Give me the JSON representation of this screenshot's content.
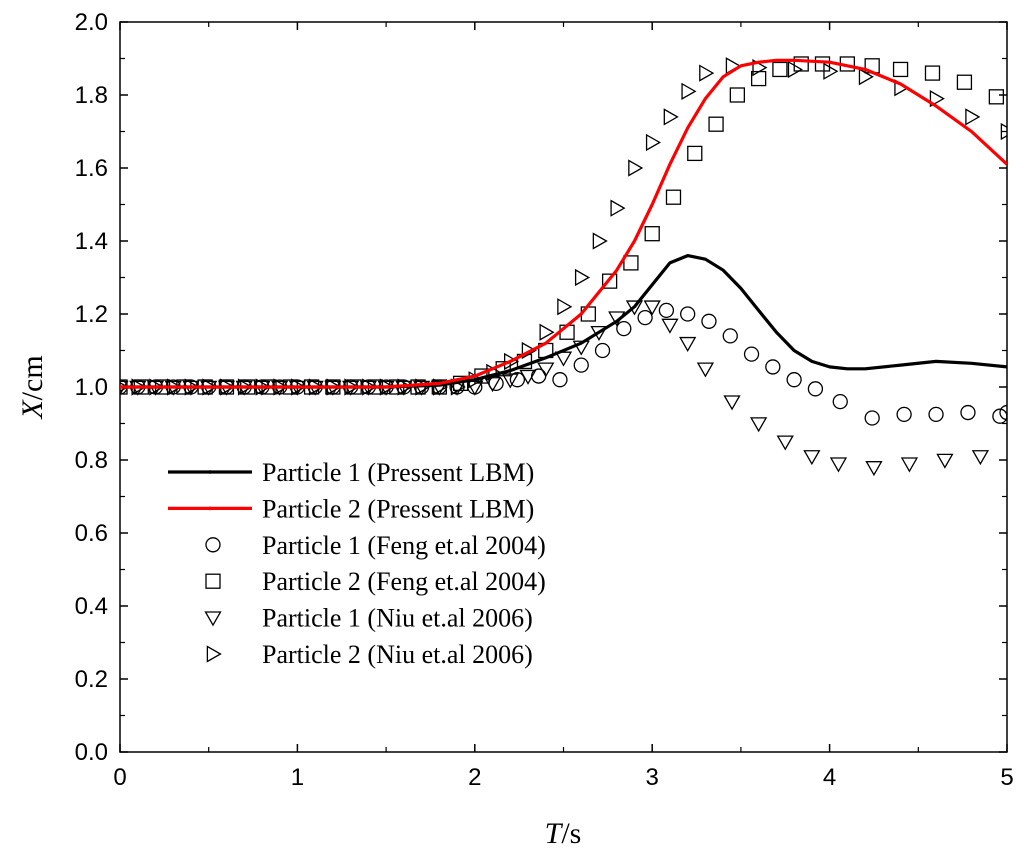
{
  "chart_data": {
    "type": "line",
    "title": "",
    "xlabel": {
      "symbol": "T",
      "unit": "/s"
    },
    "ylabel": {
      "symbol": "X",
      "unit": "/cm"
    },
    "xlim": [
      0,
      5
    ],
    "ylim": [
      0,
      2.0
    ],
    "x_ticks": [
      0,
      1,
      2,
      3,
      4,
      5
    ],
    "x_tick_labels": [
      "0",
      "1",
      "2",
      "3",
      "4",
      "5"
    ],
    "y_ticks": [
      0,
      0.2,
      0.4,
      0.6,
      0.8,
      1.0,
      1.2,
      1.4,
      1.6,
      1.8,
      2.0
    ],
    "y_tick_labels": [
      "0.0",
      "0.2",
      "0.4",
      "0.6",
      "0.8",
      "1.0",
      "1.2",
      "1.4",
      "1.6",
      "1.8",
      "2.0"
    ],
    "grid": false,
    "legend_position": "bottom-left",
    "series": [
      {
        "name": "Particle 1 (Pressent LBM)",
        "kind": "line",
        "color": "#000000",
        "x": [
          0,
          0.5,
          1.0,
          1.5,
          1.8,
          2.0,
          2.2,
          2.4,
          2.6,
          2.8,
          2.9,
          3.0,
          3.1,
          3.2,
          3.3,
          3.4,
          3.5,
          3.6,
          3.7,
          3.8,
          3.9,
          4.0,
          4.1,
          4.2,
          4.4,
          4.6,
          4.8,
          5.0
        ],
        "y": [
          1.0,
          1.0,
          1.0,
          1.0,
          1.005,
          1.02,
          1.045,
          1.08,
          1.12,
          1.18,
          1.22,
          1.28,
          1.34,
          1.36,
          1.35,
          1.32,
          1.27,
          1.21,
          1.15,
          1.1,
          1.07,
          1.055,
          1.05,
          1.05,
          1.06,
          1.07,
          1.065,
          1.055
        ]
      },
      {
        "name": "Particle 2 (Pressent LBM)",
        "kind": "line",
        "color": "#ff0000",
        "x": [
          0,
          0.5,
          1.0,
          1.5,
          1.8,
          2.0,
          2.2,
          2.4,
          2.6,
          2.8,
          2.9,
          3.0,
          3.1,
          3.2,
          3.3,
          3.4,
          3.5,
          3.6,
          3.7,
          3.8,
          4.0,
          4.2,
          4.4,
          4.6,
          4.8,
          5.0
        ],
        "y": [
          1.0,
          1.0,
          1.0,
          1.0,
          1.01,
          1.03,
          1.07,
          1.12,
          1.2,
          1.32,
          1.4,
          1.5,
          1.61,
          1.71,
          1.79,
          1.85,
          1.88,
          1.89,
          1.895,
          1.895,
          1.89,
          1.87,
          1.83,
          1.77,
          1.7,
          1.61
        ]
      },
      {
        "name": "Particle 1 (Feng et.al 2004)",
        "kind": "scatter",
        "marker": "circle",
        "x": [
          0.0,
          0.1,
          0.2,
          0.3,
          0.4,
          0.5,
          0.6,
          0.7,
          0.8,
          0.9,
          1.0,
          1.1,
          1.2,
          1.3,
          1.4,
          1.5,
          1.6,
          1.7,
          1.8,
          1.9,
          2.0,
          2.12,
          2.24,
          2.36,
          2.48,
          2.6,
          2.72,
          2.84,
          2.96,
          3.08,
          3.2,
          3.32,
          3.44,
          3.56,
          3.68,
          3.8,
          3.92,
          4.06,
          4.24,
          4.42,
          4.6,
          4.78,
          4.96,
          5.0
        ],
        "y": [
          1.0,
          1.0,
          1.0,
          1.0,
          1.0,
          1.0,
          1.0,
          1.0,
          1.0,
          1.0,
          1.0,
          1.0,
          1.0,
          1.0,
          1.0,
          1.0,
          1.0,
          1.0,
          1.0,
          1.0,
          1.0,
          1.01,
          1.02,
          1.03,
          1.02,
          1.06,
          1.1,
          1.16,
          1.19,
          1.21,
          1.2,
          1.18,
          1.14,
          1.09,
          1.055,
          1.02,
          0.995,
          0.96,
          0.915,
          0.925,
          0.925,
          0.93,
          0.92,
          0.93
        ]
      },
      {
        "name": "Particle 2 (Feng et.al 2004)",
        "kind": "scatter",
        "marker": "square",
        "x": [
          0.0,
          0.12,
          0.24,
          0.36,
          0.48,
          0.6,
          0.72,
          0.84,
          0.96,
          1.08,
          1.2,
          1.32,
          1.44,
          1.56,
          1.68,
          1.8,
          1.92,
          2.04,
          2.16,
          2.28,
          2.4,
          2.52,
          2.64,
          2.76,
          2.88,
          3.0,
          3.12,
          3.24,
          3.36,
          3.48,
          3.6,
          3.72,
          3.84,
          3.96,
          4.1,
          4.24,
          4.4,
          4.58,
          4.76,
          4.94
        ],
        "y": [
          1.0,
          1.0,
          1.0,
          1.0,
          1.0,
          1.0,
          1.0,
          1.0,
          1.0,
          1.0,
          1.0,
          1.0,
          1.0,
          1.0,
          1.0,
          1.0,
          1.01,
          1.03,
          1.05,
          1.07,
          1.1,
          1.15,
          1.2,
          1.29,
          1.34,
          1.42,
          1.52,
          1.64,
          1.72,
          1.8,
          1.845,
          1.87,
          1.885,
          1.885,
          1.885,
          1.88,
          1.87,
          1.86,
          1.835,
          1.795
        ]
      },
      {
        "name": "Particle 1 (Niu et.al 2006)",
        "kind": "scatter",
        "marker": "triangle-down",
        "x": [
          0.0,
          0.1,
          0.2,
          0.3,
          0.4,
          0.5,
          0.6,
          0.7,
          0.8,
          0.9,
          1.0,
          1.1,
          1.2,
          1.3,
          1.4,
          1.5,
          1.6,
          1.7,
          1.8,
          1.9,
          2.0,
          2.1,
          2.2,
          2.3,
          2.4,
          2.5,
          2.6,
          2.7,
          2.8,
          2.9,
          3.0,
          3.1,
          3.2,
          3.3,
          3.45,
          3.6,
          3.75,
          3.9,
          4.05,
          4.25,
          4.45,
          4.65,
          4.85
        ],
        "y": [
          1.0,
          1.0,
          1.0,
          1.0,
          1.0,
          1.0,
          1.0,
          1.0,
          1.0,
          1.0,
          1.0,
          1.0,
          1.0,
          1.0,
          1.0,
          1.0,
          1.0,
          1.0,
          1.0,
          1.0,
          1.0,
          1.01,
          1.02,
          1.03,
          1.05,
          1.08,
          1.11,
          1.15,
          1.19,
          1.22,
          1.22,
          1.17,
          1.12,
          1.05,
          0.96,
          0.9,
          0.85,
          0.81,
          0.79,
          0.78,
          0.79,
          0.8,
          0.81
        ]
      },
      {
        "name": "Particle 2 (Niu et.al 2006)",
        "kind": "scatter",
        "marker": "triangle-right",
        "x": [
          0.0,
          0.1,
          0.2,
          0.3,
          0.4,
          0.5,
          0.6,
          0.7,
          0.8,
          0.9,
          1.0,
          1.1,
          1.2,
          1.3,
          1.4,
          1.5,
          1.6,
          1.7,
          1.8,
          1.9,
          2.0,
          2.1,
          2.2,
          2.3,
          2.4,
          2.5,
          2.6,
          2.7,
          2.8,
          2.9,
          3.0,
          3.1,
          3.2,
          3.3,
          3.45,
          3.6,
          3.8,
          4.0,
          4.2,
          4.4,
          4.6,
          4.8,
          5.0
        ],
        "y": [
          1.0,
          1.0,
          1.0,
          1.0,
          1.0,
          1.0,
          1.0,
          1.0,
          1.0,
          1.0,
          1.0,
          1.0,
          1.0,
          1.0,
          1.0,
          1.0,
          1.0,
          1.0,
          1.0,
          1.0,
          1.02,
          1.04,
          1.07,
          1.1,
          1.15,
          1.22,
          1.3,
          1.4,
          1.49,
          1.6,
          1.67,
          1.74,
          1.81,
          1.86,
          1.88,
          1.875,
          1.87,
          1.865,
          1.85,
          1.82,
          1.79,
          1.74,
          1.7
        ]
      }
    ]
  }
}
